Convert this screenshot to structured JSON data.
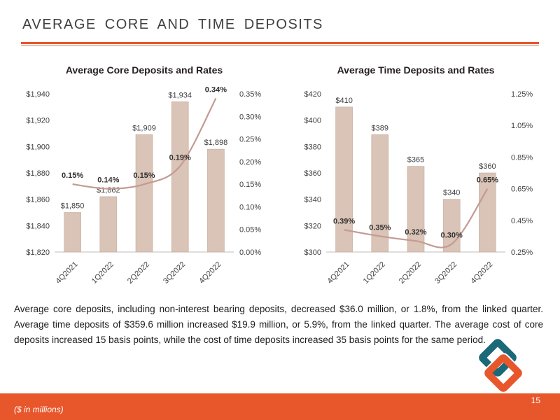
{
  "slide": {
    "title": "AVERAGE CORE AND TIME DEPOSITS",
    "body_text": "Average core deposits, including non-interest bearing deposits, decreased $36.0 million, or 1.8%, from the linked quarter. Average time deposits of $359.6 million increased $19.9 million, or 5.9%, from the linked quarter. The average cost of core deposits increased 15 basis points, while the cost of time deposits increased 35 basis points for the same period.",
    "footer_note": "($ in millions)",
    "page_number": "15"
  },
  "colors": {
    "accent_orange": "#e8562c",
    "bar_fill": "#d9c4b7",
    "bar_stroke": "#c4ab9c",
    "line_color": "#c49b93",
    "logo_teal": "#1b6878"
  },
  "chart_data": [
    {
      "type": "bar",
      "subtype": "bar+line combo, dual axis",
      "title": "Average Core Deposits and Rates",
      "categories": [
        "4Q2021",
        "1Q2022",
        "2Q2022",
        "3Q2022",
        "4Q2022"
      ],
      "series": [
        {
          "name": "deposits",
          "type": "bar",
          "axis": "left",
          "values": [
            1850,
            1862,
            1909,
            1934,
            1898
          ],
          "labels": [
            "$1,850",
            "$1,862",
            "$1,909",
            "$1,934",
            "$1,898"
          ]
        },
        {
          "name": "rate",
          "type": "line",
          "axis": "right",
          "values": [
            0.15,
            0.14,
            0.15,
            0.19,
            0.34
          ],
          "labels": [
            "0.15%",
            "0.14%",
            "0.15%",
            "0.19%",
            "0.34%"
          ]
        }
      ],
      "left_axis": {
        "min": 1820,
        "max": 1940,
        "step": 20,
        "tick_labels": [
          "$1,820",
          "$1,840",
          "$1,860",
          "$1,880",
          "$1,900",
          "$1,920",
          "$1,940"
        ]
      },
      "right_axis": {
        "min": 0.0,
        "max": 0.35,
        "step": 0.05,
        "tick_labels": [
          "0.00%",
          "0.05%",
          "0.10%",
          "0.15%",
          "0.20%",
          "0.25%",
          "0.30%",
          "0.35%"
        ]
      },
      "grid": false,
      "legend": "none"
    },
    {
      "type": "bar",
      "subtype": "bar+line combo, dual axis",
      "title": "Average Time Deposits and Rates",
      "categories": [
        "4Q2021",
        "1Q2022",
        "2Q2022",
        "3Q2022",
        "4Q2022"
      ],
      "series": [
        {
          "name": "deposits",
          "type": "bar",
          "axis": "left",
          "values": [
            410,
            389,
            365,
            340,
            360
          ],
          "labels": [
            "$410",
            "$389",
            "$365",
            "$340",
            "$360"
          ]
        },
        {
          "name": "rate",
          "type": "line",
          "axis": "right",
          "values": [
            0.39,
            0.35,
            0.32,
            0.3,
            0.65
          ],
          "labels": [
            "0.39%",
            "0.35%",
            "0.32%",
            "0.30%",
            "0.65%"
          ]
        }
      ],
      "left_axis": {
        "min": 300,
        "max": 420,
        "step": 20,
        "tick_labels": [
          "$300",
          "$320",
          "$340",
          "$360",
          "$380",
          "$400",
          "$420"
        ]
      },
      "right_axis": {
        "min": 0.25,
        "max": 1.25,
        "step": 0.2,
        "tick_labels": [
          "0.25%",
          "0.45%",
          "0.65%",
          "0.85%",
          "1.05%",
          "1.25%"
        ]
      },
      "grid": false,
      "legend": "none"
    }
  ]
}
